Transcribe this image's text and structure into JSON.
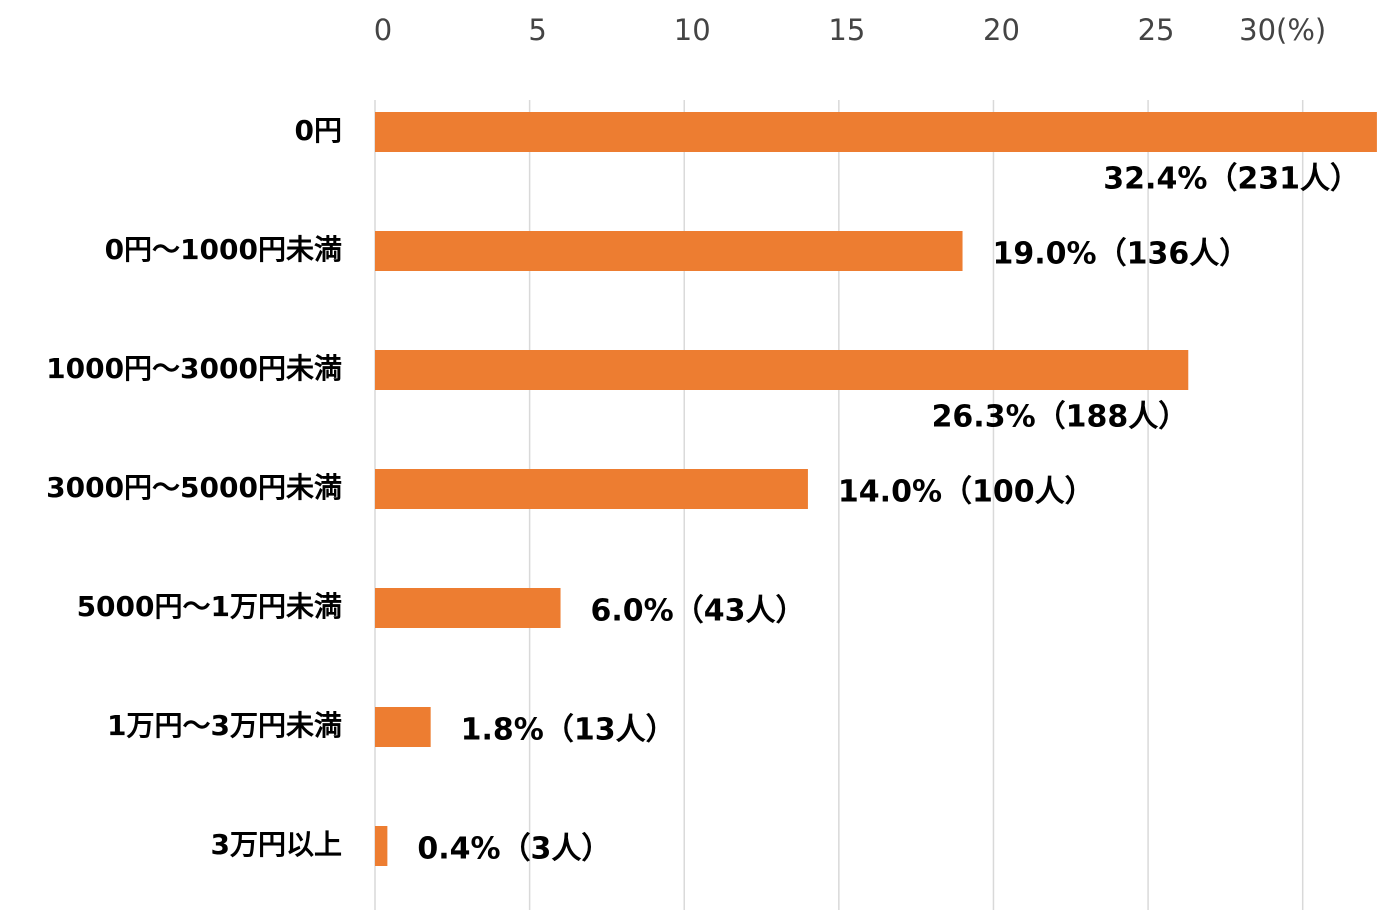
{
  "chart_data": {
    "type": "bar",
    "orientation": "horizontal",
    "categories": [
      "0円",
      "0円～1000円未満",
      "1000円～3000円未満",
      "3000円～5000円未満",
      "5000円～1万円未満",
      "1万円～3万円未満",
      "3万円以上"
    ],
    "values": [
      32.4,
      19.0,
      26.3,
      14.0,
      6.0,
      1.8,
      0.4
    ],
    "value_labels": [
      "32.4%（231人）",
      "19.0%（136人）",
      "26.3%（188人）",
      "14.0%（100人）",
      "6.0%（43人）",
      "1.8%（13人）",
      "0.4%（3人）"
    ],
    "color": "#ed7d31",
    "xlim": [
      0,
      32.5
    ],
    "xticks": [
      0,
      5,
      10,
      15,
      20,
      25,
      {
        "value": 30,
        "label": "30(%)"
      }
    ],
    "grid": true
  }
}
